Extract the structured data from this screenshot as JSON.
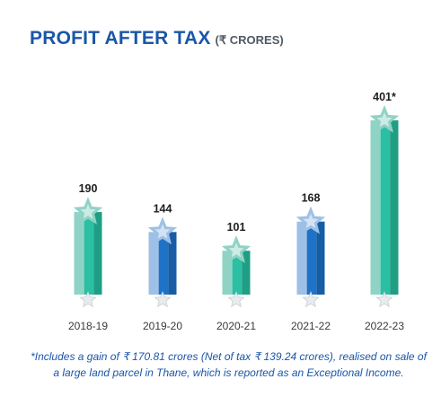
{
  "header": {
    "title": "PROFIT AFTER TAX",
    "unit": "(₹ CRORES)"
  },
  "chart_data": {
    "type": "bar",
    "title": "PROFIT AFTER TAX",
    "subtitle": "(₹ CRORES)",
    "categories": [
      "2018-19",
      "2019-20",
      "2020-21",
      "2021-22",
      "2022-23"
    ],
    "values": [
      190,
      144,
      101,
      168,
      401
    ],
    "value_labels": [
      "190",
      "144",
      "101",
      "168",
      "401*"
    ],
    "ylim": [
      0,
      401
    ],
    "grid": false,
    "bar_colors": [
      {
        "light": "#8fd3c5",
        "mid": "#2bbfa4",
        "dark": "#1f9e86"
      },
      {
        "light": "#9fc0e6",
        "mid": "#1e73c8",
        "dark": "#165da6"
      },
      {
        "light": "#8fd3c5",
        "mid": "#2bbfa4",
        "dark": "#1f9e86"
      },
      {
        "light": "#9fc0e6",
        "mid": "#1e73c8",
        "dark": "#165da6"
      },
      {
        "light": "#8fd3c5",
        "mid": "#2bbfa4",
        "dark": "#1f9e86"
      }
    ]
  },
  "footnote": "*Includes a gain of ₹ 170.81 crores (Net of tax ₹ 139.24 crores), realised on sale of a large land parcel in Thane, which is reported as an Exceptional Income.",
  "colors": {
    "title": "#1a56a8",
    "unit": "#505a64",
    "footnote": "#1a56a8",
    "axis_label": "#3a3a3a"
  }
}
